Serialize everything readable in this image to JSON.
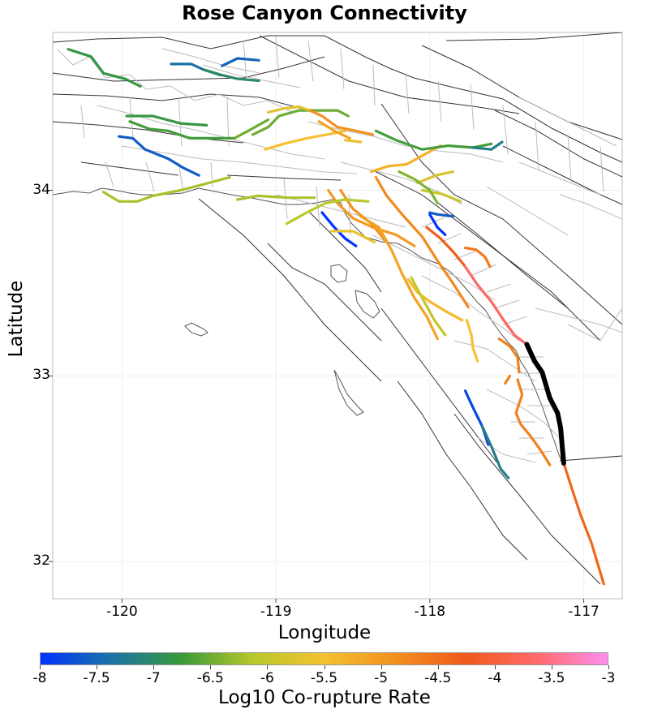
{
  "title": "Rose Canyon Connectivity",
  "axes": {
    "xlabel": "Longitude",
    "ylabel": "Latitude",
    "xlim": [
      -120.45,
      -116.75
    ],
    "ylim": [
      31.8,
      34.85
    ],
    "xticks": [
      "-120",
      "-119",
      "-118",
      "-117"
    ],
    "yticks": [
      "34",
      "33",
      "32"
    ]
  },
  "colorbar": {
    "title": "Log10 Co-rupture Rate",
    "min": -8,
    "max": -3,
    "ticks": [
      "-8",
      "-7.5",
      "-7",
      "-6.5",
      "-6",
      "-5.5",
      "-5",
      "-4.5",
      "-4",
      "-3.5",
      "-3"
    ],
    "colors": [
      "#0033ff",
      "#1a73a8",
      "#3a9a3a",
      "#b8c82a",
      "#f5c130",
      "#f2901e",
      "#ef5a1c",
      "#ff6b6b",
      "#ff8ef0"
    ]
  },
  "selected_fault": {
    "color": "#000000"
  },
  "faults": [
    {
      "rate": -3.0,
      "selected": true,
      "pts": [
        [
          -117.37,
          33.17
        ],
        [
          -117.32,
          33.08
        ],
        [
          -117.27,
          33.02
        ],
        [
          -117.22,
          32.88
        ],
        [
          -117.17,
          32.8
        ],
        [
          -117.15,
          32.72
        ],
        [
          -117.14,
          32.62
        ],
        [
          -117.13,
          32.53
        ]
      ]
    },
    {
      "rate": -3.7,
      "pts": [
        [
          -117.37,
          33.17
        ],
        [
          -117.45,
          33.22
        ],
        [
          -117.52,
          33.3
        ],
        [
          -117.6,
          33.4
        ],
        [
          -117.69,
          33.49
        ],
        [
          -117.78,
          33.6
        ]
      ]
    },
    {
      "rate": -4.3,
      "pts": [
        [
          -117.78,
          33.6
        ],
        [
          -117.85,
          33.67
        ],
        [
          -117.93,
          33.74
        ],
        [
          -118.02,
          33.8
        ]
      ]
    },
    {
      "rate": -4.6,
      "pts": [
        [
          -117.77,
          33.69
        ],
        [
          -117.7,
          33.68
        ],
        [
          -117.64,
          33.64
        ],
        [
          -117.61,
          33.59
        ]
      ]
    },
    {
      "rate": -4.4,
      "pts": [
        [
          -117.13,
          32.53
        ],
        [
          -117.08,
          32.4
        ],
        [
          -117.02,
          32.25
        ],
        [
          -116.95,
          32.1
        ],
        [
          -116.87,
          31.88
        ]
      ]
    },
    {
      "rate": -4.7,
      "pts": [
        [
          -117.43,
          32.98
        ],
        [
          -117.4,
          32.9
        ],
        [
          -117.44,
          32.8
        ],
        [
          -117.41,
          32.74
        ],
        [
          -117.35,
          32.68
        ],
        [
          -117.28,
          32.6
        ],
        [
          -117.22,
          32.52
        ]
      ]
    },
    {
      "rate": -4.7,
      "pts": [
        [
          -117.55,
          33.2
        ],
        [
          -117.48,
          33.16
        ],
        [
          -117.43,
          33.1
        ],
        [
          -117.42,
          33.02
        ]
      ]
    },
    {
      "rate": -4.7,
      "pts": [
        [
          -117.51,
          32.96
        ],
        [
          -117.48,
          33.0
        ]
      ]
    },
    {
      "rate": -4.8,
      "pts": [
        [
          -118.35,
          34.07
        ],
        [
          -118.28,
          33.97
        ],
        [
          -118.18,
          33.87
        ],
        [
          -118.05,
          33.75
        ],
        [
          -117.95,
          33.62
        ],
        [
          -117.85,
          33.5
        ],
        [
          -117.75,
          33.37
        ]
      ]
    },
    {
      "rate": -4.9,
      "pts": [
        [
          -118.58,
          34.0
        ],
        [
          -118.5,
          33.9
        ],
        [
          -118.38,
          33.82
        ],
        [
          -118.28,
          33.72
        ]
      ]
    },
    {
      "rate": -5.0,
      "pts": [
        [
          -118.66,
          34.0
        ],
        [
          -118.6,
          33.93
        ],
        [
          -118.5,
          33.85
        ],
        [
          -118.37,
          33.8
        ],
        [
          -118.22,
          33.76
        ],
        [
          -118.1,
          33.7
        ]
      ]
    },
    {
      "rate": -5.1,
      "pts": [
        [
          -118.45,
          33.86
        ],
        [
          -118.33,
          33.8
        ],
        [
          -118.25,
          33.68
        ],
        [
          -118.18,
          33.55
        ],
        [
          -118.1,
          33.42
        ],
        [
          -118.02,
          33.32
        ],
        [
          -117.95,
          33.2
        ]
      ]
    },
    {
      "rate": -5.4,
      "pts": [
        [
          -118.14,
          33.52
        ],
        [
          -118.08,
          33.45
        ],
        [
          -118.0,
          33.4
        ],
        [
          -117.9,
          33.35
        ],
        [
          -117.79,
          33.3
        ]
      ]
    },
    {
      "rate": -5.5,
      "pts": [
        [
          -117.76,
          33.3
        ],
        [
          -117.73,
          33.22
        ],
        [
          -117.72,
          33.15
        ],
        [
          -117.69,
          33.08
        ]
      ]
    },
    {
      "rate": -6.0,
      "pts": [
        [
          -118.12,
          33.53
        ],
        [
          -118.05,
          33.42
        ],
        [
          -117.97,
          33.3
        ],
        [
          -117.9,
          33.22
        ]
      ]
    },
    {
      "rate": -7.8,
      "pts": [
        [
          -117.77,
          32.92
        ],
        [
          -117.72,
          32.83
        ],
        [
          -117.66,
          32.73
        ],
        [
          -117.62,
          32.63
        ]
      ]
    },
    {
      "rate": -7.2,
      "pts": [
        [
          -117.66,
          32.73
        ],
        [
          -117.6,
          32.62
        ],
        [
          -117.54,
          32.5
        ],
        [
          -117.49,
          32.45
        ]
      ]
    },
    {
      "rate": -8.0,
      "pts": [
        [
          -118.7,
          33.88
        ],
        [
          -118.62,
          33.8
        ],
        [
          -118.55,
          33.74
        ],
        [
          -118.48,
          33.7
        ]
      ]
    },
    {
      "rate": -8.0,
      "pts": [
        [
          -118.0,
          33.87
        ],
        [
          -117.95,
          33.8
        ],
        [
          -117.9,
          33.76
        ]
      ]
    },
    {
      "rate": -7.6,
      "pts": [
        [
          -118.0,
          33.88
        ],
        [
          -117.95,
          33.87
        ],
        [
          -117.85,
          33.86
        ]
      ]
    },
    {
      "rate": -5.3,
      "pts": [
        [
          -118.38,
          34.1
        ],
        [
          -118.27,
          34.13
        ],
        [
          -118.15,
          34.14
        ],
        [
          -118.02,
          34.2
        ],
        [
          -117.93,
          34.24
        ]
      ]
    },
    {
      "rate": -5.8,
      "pts": [
        [
          -118.08,
          34.04
        ],
        [
          -117.96,
          34.08
        ],
        [
          -117.85,
          34.1
        ]
      ]
    },
    {
      "rate": -5.9,
      "pts": [
        [
          -118.05,
          34.0
        ],
        [
          -117.92,
          33.98
        ],
        [
          -117.8,
          33.94
        ]
      ]
    },
    {
      "rate": -6.4,
      "pts": [
        [
          -118.2,
          34.1
        ],
        [
          -118.1,
          34.06
        ],
        [
          -118.0,
          34.0
        ],
        [
          -117.95,
          33.93
        ]
      ]
    },
    {
      "rate": -6.2,
      "pts": [
        [
          -119.25,
          33.95
        ],
        [
          -119.12,
          33.97
        ],
        [
          -118.92,
          33.96
        ],
        [
          -118.75,
          33.96
        ]
      ]
    },
    {
      "rate": -6.2,
      "pts": [
        [
          -120.12,
          33.99
        ],
        [
          -120.02,
          33.94
        ],
        [
          -119.9,
          33.94
        ],
        [
          -119.8,
          33.97
        ],
        [
          -119.62,
          34.0
        ],
        [
          -119.48,
          34.03
        ],
        [
          -119.3,
          34.07
        ]
      ]
    },
    {
      "rate": -6.1,
      "pts": [
        [
          -118.93,
          33.82
        ],
        [
          -118.8,
          33.88
        ],
        [
          -118.68,
          33.93
        ],
        [
          -118.55,
          33.95
        ],
        [
          -118.4,
          33.94
        ]
      ]
    },
    {
      "rate": -5.6,
      "pts": [
        [
          -118.64,
          33.78
        ],
        [
          -118.5,
          33.78
        ],
        [
          -118.36,
          33.72
        ]
      ]
    },
    {
      "rate": -5.5,
      "pts": [
        [
          -119.07,
          34.22
        ],
        [
          -118.95,
          34.25
        ],
        [
          -118.8,
          34.28
        ],
        [
          -118.67,
          34.3
        ],
        [
          -118.55,
          34.32
        ]
      ]
    },
    {
      "rate": -5.6,
      "pts": [
        [
          -118.55,
          34.27
        ],
        [
          -118.45,
          34.26
        ]
      ]
    },
    {
      "rate": -6.5,
      "pts": [
        [
          -119.15,
          34.3
        ],
        [
          -119.05,
          34.34
        ],
        [
          -118.98,
          34.4
        ],
        [
          -118.85,
          34.43
        ],
        [
          -118.72,
          34.43
        ]
      ]
    },
    {
      "rate": -5.7,
      "pts": [
        [
          -119.05,
          34.42
        ],
        [
          -118.95,
          34.44
        ],
        [
          -118.85,
          34.45
        ],
        [
          -118.78,
          34.43
        ]
      ]
    },
    {
      "rate": -4.9,
      "pts": [
        [
          -118.78,
          34.43
        ],
        [
          -118.7,
          34.4
        ],
        [
          -118.6,
          34.34
        ],
        [
          -118.48,
          34.32
        ],
        [
          -118.37,
          34.3
        ]
      ]
    },
    {
      "rate": -5.1,
      "pts": [
        [
          -118.72,
          34.37
        ],
        [
          -118.62,
          34.32
        ],
        [
          -118.52,
          34.28
        ]
      ]
    },
    {
      "rate": -6.5,
      "pts": [
        [
          -118.72,
          34.43
        ],
        [
          -118.6,
          34.43
        ],
        [
          -118.53,
          34.4
        ]
      ]
    },
    {
      "rate": -6.7,
      "pts": [
        [
          -118.35,
          34.32
        ],
        [
          -118.22,
          34.27
        ],
        [
          -118.05,
          34.22
        ],
        [
          -117.88,
          34.24
        ],
        [
          -117.72,
          34.23
        ],
        [
          -117.6,
          34.25
        ]
      ]
    },
    {
      "rate": -7.2,
      "pts": [
        [
          -117.72,
          34.23
        ],
        [
          -117.6,
          34.22
        ],
        [
          -117.53,
          34.26
        ]
      ]
    },
    {
      "rate": -6.7,
      "pts": [
        [
          -119.95,
          34.37
        ],
        [
          -119.82,
          34.33
        ],
        [
          -119.7,
          34.32
        ],
        [
          -119.56,
          34.28
        ],
        [
          -119.45,
          34.28
        ],
        [
          -119.27,
          34.28
        ]
      ]
    },
    {
      "rate": -6.5,
      "pts": [
        [
          -119.27,
          34.28
        ],
        [
          -119.18,
          34.32
        ],
        [
          -119.05,
          34.38
        ]
      ]
    },
    {
      "rate": -6.8,
      "pts": [
        [
          -119.97,
          34.4
        ],
        [
          -119.8,
          34.4
        ],
        [
          -119.62,
          34.36
        ],
        [
          -119.45,
          34.35
        ]
      ]
    },
    {
      "rate": -7.6,
      "pts": [
        [
          -120.02,
          34.29
        ],
        [
          -119.93,
          34.28
        ],
        [
          -119.85,
          34.22
        ],
        [
          -119.7,
          34.17
        ],
        [
          -119.6,
          34.12
        ],
        [
          -119.5,
          34.08
        ]
      ]
    },
    {
      "rate": -6.8,
      "pts": [
        [
          -120.35,
          34.76
        ],
        [
          -120.2,
          34.72
        ],
        [
          -120.12,
          34.63
        ],
        [
          -119.98,
          34.6
        ],
        [
          -119.88,
          34.56
        ]
      ]
    },
    {
      "rate": -7.4,
      "pts": [
        [
          -119.68,
          34.68
        ],
        [
          -119.55,
          34.68
        ],
        [
          -119.47,
          34.65
        ],
        [
          -119.36,
          34.62
        ]
      ]
    },
    {
      "rate": -7.0,
      "pts": [
        [
          -119.47,
          34.65
        ],
        [
          -119.35,
          34.62
        ],
        [
          -119.25,
          34.6
        ],
        [
          -119.11,
          34.59
        ]
      ]
    },
    {
      "rate": -7.5,
      "pts": [
        [
          -119.35,
          34.67
        ],
        [
          -119.25,
          34.71
        ],
        [
          -119.11,
          34.7
        ]
      ]
    }
  ]
}
